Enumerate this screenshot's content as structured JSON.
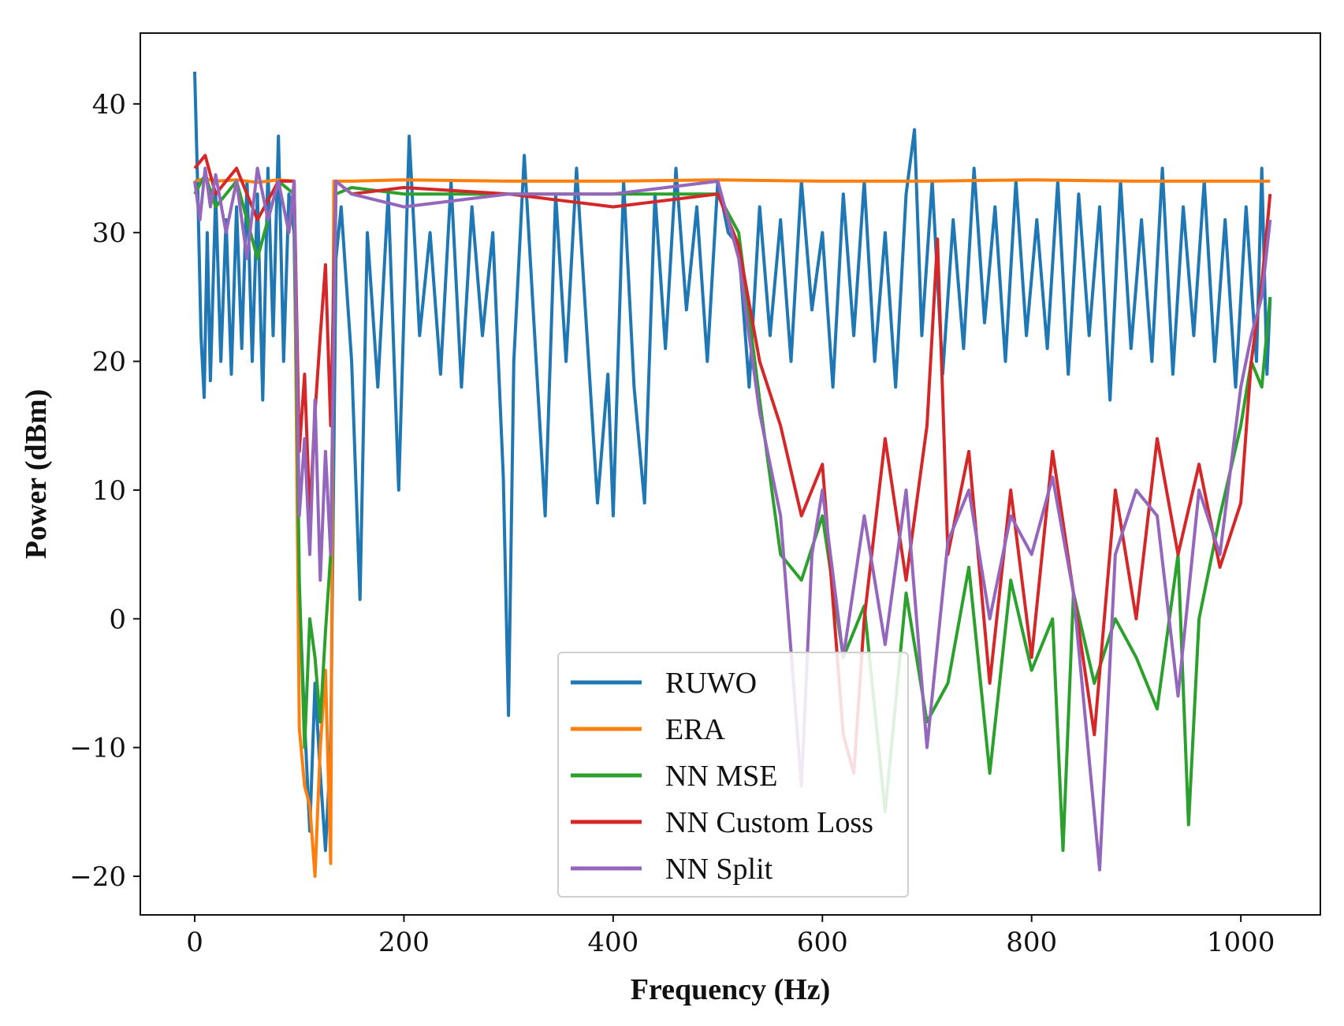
{
  "chart_data": {
    "type": "line",
    "title": "",
    "xlabel": "Frequency (Hz)",
    "ylabel": "Power (dBm)",
    "xlim": [
      -52,
      1076
    ],
    "ylim": [
      -23,
      45.5
    ],
    "xticks": [
      0,
      200,
      400,
      600,
      800,
      1000
    ],
    "xtick_labels": [
      "0",
      "200",
      "400",
      "600",
      "800",
      "1000"
    ],
    "yticks": [
      -20,
      -10,
      0,
      10,
      20,
      30,
      40
    ],
    "ytick_labels": [
      "−20",
      "−10",
      "0",
      "10",
      "20",
      "30",
      "40"
    ],
    "legend_position": "lower-center",
    "grid": false,
    "series": [
      {
        "name": "RUWO",
        "color": "#1f77b4",
        "points": [
          [
            0,
            42.5
          ],
          [
            3,
            33
          ],
          [
            6,
            22
          ],
          [
            9,
            17.2
          ],
          [
            12,
            30
          ],
          [
            15,
            18.5
          ],
          [
            20,
            33
          ],
          [
            25,
            20
          ],
          [
            30,
            31
          ],
          [
            35,
            19
          ],
          [
            40,
            32
          ],
          [
            45,
            21
          ],
          [
            50,
            34
          ],
          [
            55,
            20
          ],
          [
            60,
            33
          ],
          [
            65,
            17
          ],
          [
            70,
            35
          ],
          [
            75,
            22
          ],
          [
            80,
            37.5
          ],
          [
            85,
            20
          ],
          [
            90,
            33
          ],
          [
            95,
            30
          ],
          [
            100,
            2
          ],
          [
            105,
            -8
          ],
          [
            110,
            -16.5
          ],
          [
            115,
            -5
          ],
          [
            120,
            -12
          ],
          [
            125,
            -18
          ],
          [
            130,
            -10
          ],
          [
            135,
            28
          ],
          [
            140,
            32
          ],
          [
            150,
            20
          ],
          [
            158,
            1.5
          ],
          [
            165,
            30
          ],
          [
            175,
            18
          ],
          [
            185,
            33
          ],
          [
            195,
            10
          ],
          [
            205,
            37.5
          ],
          [
            215,
            22
          ],
          [
            225,
            30
          ],
          [
            235,
            19
          ],
          [
            245,
            34
          ],
          [
            255,
            18
          ],
          [
            265,
            32
          ],
          [
            275,
            22
          ],
          [
            285,
            30
          ],
          [
            295,
            11
          ],
          [
            300,
            -7.5
          ],
          [
            305,
            20
          ],
          [
            315,
            36
          ],
          [
            325,
            22
          ],
          [
            335,
            8
          ],
          [
            345,
            33
          ],
          [
            355,
            20
          ],
          [
            365,
            35
          ],
          [
            375,
            22
          ],
          [
            385,
            9
          ],
          [
            395,
            19
          ],
          [
            400,
            8
          ],
          [
            410,
            34
          ],
          [
            420,
            18
          ],
          [
            430,
            9
          ],
          [
            440,
            33
          ],
          [
            450,
            21
          ],
          [
            460,
            35
          ],
          [
            470,
            24
          ],
          [
            480,
            32
          ],
          [
            490,
            20
          ],
          [
            500,
            34
          ],
          [
            510,
            30
          ],
          [
            520,
            29
          ],
          [
            530,
            18
          ],
          [
            540,
            32
          ],
          [
            550,
            22
          ],
          [
            560,
            31
          ],
          [
            570,
            20
          ],
          [
            580,
            34
          ],
          [
            590,
            24
          ],
          [
            600,
            30
          ],
          [
            610,
            18
          ],
          [
            620,
            33
          ],
          [
            630,
            22
          ],
          [
            640,
            34
          ],
          [
            650,
            20
          ],
          [
            660,
            30
          ],
          [
            670,
            18
          ],
          [
            680,
            33
          ],
          [
            688,
            38
          ],
          [
            695,
            22
          ],
          [
            705,
            34
          ],
          [
            715,
            19
          ],
          [
            725,
            31
          ],
          [
            735,
            21
          ],
          [
            745,
            35
          ],
          [
            755,
            23
          ],
          [
            765,
            32
          ],
          [
            775,
            20
          ],
          [
            785,
            34
          ],
          [
            795,
            22
          ],
          [
            805,
            31
          ],
          [
            815,
            21
          ],
          [
            825,
            34
          ],
          [
            835,
            19
          ],
          [
            845,
            33
          ],
          [
            855,
            22
          ],
          [
            865,
            32
          ],
          [
            875,
            17
          ],
          [
            885,
            34
          ],
          [
            895,
            21
          ],
          [
            905,
            31
          ],
          [
            915,
            20
          ],
          [
            925,
            35
          ],
          [
            935,
            19
          ],
          [
            945,
            32
          ],
          [
            955,
            22
          ],
          [
            965,
            34
          ],
          [
            975,
            20
          ],
          [
            985,
            31
          ],
          [
            995,
            18
          ],
          [
            1005,
            32
          ],
          [
            1015,
            20
          ],
          [
            1020,
            35
          ],
          [
            1025,
            19
          ],
          [
            1028,
            25
          ]
        ]
      },
      {
        "name": "ERA",
        "color": "#ff7f0e",
        "points": [
          [
            0,
            34
          ],
          [
            10,
            34.2
          ],
          [
            20,
            34
          ],
          [
            40,
            34.1
          ],
          [
            60,
            33.9
          ],
          [
            80,
            34.1
          ],
          [
            95,
            34
          ],
          [
            100,
            -8.5
          ],
          [
            105,
            -13
          ],
          [
            110,
            -14.5
          ],
          [
            115,
            -20
          ],
          [
            120,
            -10
          ],
          [
            125,
            -4
          ],
          [
            130,
            -19
          ],
          [
            133,
            34
          ],
          [
            150,
            34
          ],
          [
            200,
            34.1
          ],
          [
            300,
            34
          ],
          [
            400,
            34
          ],
          [
            500,
            34.1
          ],
          [
            600,
            34
          ],
          [
            700,
            34
          ],
          [
            800,
            34.1
          ],
          [
            900,
            34
          ],
          [
            1000,
            34
          ],
          [
            1028,
            34
          ]
        ]
      },
      {
        "name": "NN MSE",
        "color": "#2ca02c",
        "points": [
          [
            0,
            33
          ],
          [
            10,
            34.5
          ],
          [
            20,
            32
          ],
          [
            40,
            34
          ],
          [
            60,
            28
          ],
          [
            80,
            34
          ],
          [
            95,
            33
          ],
          [
            100,
            3
          ],
          [
            105,
            -10
          ],
          [
            110,
            0
          ],
          [
            115,
            -3
          ],
          [
            120,
            -8
          ],
          [
            125,
            -1
          ],
          [
            130,
            5
          ],
          [
            135,
            33
          ],
          [
            150,
            33.5
          ],
          [
            200,
            33
          ],
          [
            300,
            33
          ],
          [
            400,
            33
          ],
          [
            500,
            33
          ],
          [
            520,
            30
          ],
          [
            540,
            17
          ],
          [
            560,
            5
          ],
          [
            580,
            3
          ],
          [
            600,
            8
          ],
          [
            620,
            -3
          ],
          [
            640,
            1
          ],
          [
            660,
            -15
          ],
          [
            680,
            2
          ],
          [
            700,
            -8
          ],
          [
            720,
            -5
          ],
          [
            740,
            4
          ],
          [
            760,
            -12
          ],
          [
            780,
            3
          ],
          [
            800,
            -4
          ],
          [
            820,
            0
          ],
          [
            830,
            -18
          ],
          [
            840,
            2
          ],
          [
            860,
            -5
          ],
          [
            880,
            0
          ],
          [
            900,
            -3
          ],
          [
            920,
            -7
          ],
          [
            940,
            5
          ],
          [
            950,
            -16
          ],
          [
            960,
            0
          ],
          [
            980,
            8
          ],
          [
            1000,
            15
          ],
          [
            1010,
            20
          ],
          [
            1020,
            18
          ],
          [
            1028,
            25
          ]
        ]
      },
      {
        "name": "NN Custom Loss",
        "color": "#d62728",
        "points": [
          [
            0,
            35
          ],
          [
            10,
            36
          ],
          [
            20,
            33
          ],
          [
            40,
            35
          ],
          [
            60,
            31
          ],
          [
            80,
            34
          ],
          [
            95,
            34
          ],
          [
            100,
            13
          ],
          [
            105,
            19
          ],
          [
            110,
            8
          ],
          [
            115,
            16
          ],
          [
            120,
            22
          ],
          [
            125,
            27.5
          ],
          [
            130,
            15
          ],
          [
            135,
            34
          ],
          [
            150,
            33
          ],
          [
            200,
            33.5
          ],
          [
            300,
            33
          ],
          [
            400,
            32
          ],
          [
            500,
            33
          ],
          [
            520,
            29
          ],
          [
            540,
            20
          ],
          [
            560,
            15
          ],
          [
            580,
            8
          ],
          [
            600,
            12
          ],
          [
            620,
            -9
          ],
          [
            630,
            -12
          ],
          [
            640,
            0
          ],
          [
            660,
            14
          ],
          [
            680,
            3
          ],
          [
            700,
            15
          ],
          [
            710,
            29.5
          ],
          [
            720,
            5
          ],
          [
            740,
            13
          ],
          [
            760,
            -5
          ],
          [
            780,
            10
          ],
          [
            800,
            -3
          ],
          [
            820,
            13
          ],
          [
            840,
            2
          ],
          [
            860,
            -9
          ],
          [
            880,
            10
          ],
          [
            900,
            0
          ],
          [
            920,
            14
          ],
          [
            940,
            5
          ],
          [
            960,
            12
          ],
          [
            980,
            4
          ],
          [
            1000,
            9
          ],
          [
            1010,
            20
          ],
          [
            1020,
            26
          ],
          [
            1028,
            33
          ]
        ]
      },
      {
        "name": "NN Split",
        "color": "#9467bd",
        "points": [
          [
            0,
            34
          ],
          [
            5,
            31
          ],
          [
            10,
            35
          ],
          [
            15,
            32
          ],
          [
            20,
            34.5
          ],
          [
            30,
            30
          ],
          [
            40,
            34
          ],
          [
            50,
            28
          ],
          [
            60,
            35
          ],
          [
            70,
            31
          ],
          [
            80,
            34
          ],
          [
            90,
            30
          ],
          [
            95,
            34
          ],
          [
            100,
            8
          ],
          [
            105,
            14
          ],
          [
            110,
            5
          ],
          [
            115,
            17
          ],
          [
            120,
            3
          ],
          [
            125,
            13
          ],
          [
            130,
            5
          ],
          [
            135,
            34
          ],
          [
            150,
            33
          ],
          [
            200,
            32
          ],
          [
            300,
            33
          ],
          [
            400,
            33
          ],
          [
            500,
            34
          ],
          [
            520,
            28
          ],
          [
            540,
            16
          ],
          [
            560,
            8
          ],
          [
            580,
            -13
          ],
          [
            590,
            5
          ],
          [
            600,
            10
          ],
          [
            620,
            -3
          ],
          [
            640,
            8
          ],
          [
            660,
            -2
          ],
          [
            680,
            10
          ],
          [
            700,
            -10
          ],
          [
            720,
            6
          ],
          [
            740,
            10
          ],
          [
            760,
            0
          ],
          [
            780,
            8
          ],
          [
            800,
            5
          ],
          [
            820,
            11
          ],
          [
            840,
            2
          ],
          [
            865,
            -19.5
          ],
          [
            880,
            5
          ],
          [
            900,
            10
          ],
          [
            920,
            8
          ],
          [
            940,
            -6
          ],
          [
            960,
            10
          ],
          [
            980,
            5
          ],
          [
            1000,
            18
          ],
          [
            1010,
            22
          ],
          [
            1020,
            25
          ],
          [
            1028,
            31
          ]
        ]
      }
    ]
  }
}
